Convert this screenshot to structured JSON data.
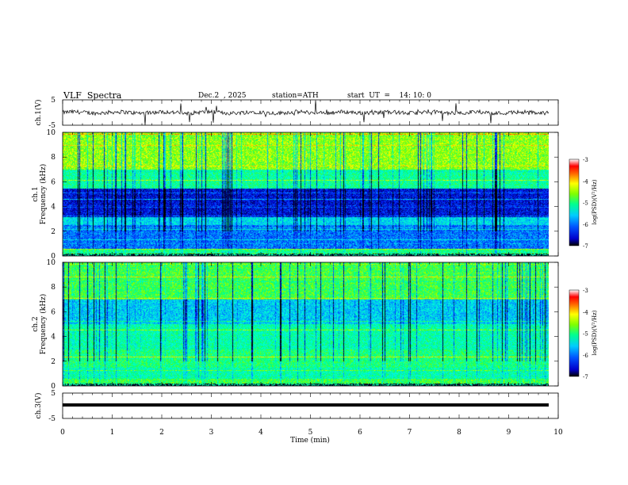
{
  "header": {
    "title": "VLF  Spectra",
    "date": "Dec.2  , 2025",
    "station": "station=ATH",
    "start": "start  UT  =    14: 10: 0"
  },
  "colors": {
    "scale": [
      "#000000",
      "#0000cc",
      "#0055ff",
      "#00aaff",
      "#00ffff",
      "#00ff80",
      "#80ff00",
      "#ffff00",
      "#ff8000",
      "#ff0000",
      "#ffffff"
    ]
  },
  "chart_data": [
    {
      "type": "line",
      "panel": "ch1-waveform",
      "ylabel": "ch.1(V)",
      "ylim": [
        -5,
        5
      ],
      "yticks": [
        "5",
        "-5"
      ],
      "xlim": [
        0,
        10
      ]
    },
    {
      "type": "heatmap",
      "panel": "ch1-spectrogram",
      "ylabel_top": "ch.1",
      "ylabel": "Frequency  (kHz)",
      "ylim": [
        0,
        10
      ],
      "yticks": [
        "0",
        "2",
        "4",
        "6",
        "8",
        "10"
      ],
      "xlim": [
        0,
        10
      ],
      "colorbar": {
        "label": "log(PSD)(V²/Hz)",
        "range": [
          -7,
          -3
        ],
        "ticks": [
          "-3",
          "-4",
          "-5",
          "-6",
          "-7"
        ]
      }
    },
    {
      "type": "heatmap",
      "panel": "ch2-spectrogram",
      "ylabel_top": "ch.2",
      "ylabel": "Frequency  (kHz)",
      "ylim": [
        0,
        10
      ],
      "yticks": [
        "0",
        "2",
        "4",
        "6",
        "8",
        "10"
      ],
      "xlim": [
        0,
        10
      ],
      "colorbar": {
        "label": "log(PSD)(V²/Hz)",
        "range": [
          -7,
          -3
        ],
        "ticks": [
          "-3",
          "-4",
          "-5",
          "-6",
          "-7"
        ]
      }
    },
    {
      "type": "line",
      "panel": "ch3-waveform",
      "ylabel": "ch.3(V)",
      "ylim": [
        -5,
        5
      ],
      "yticks": [
        "5",
        "-5"
      ],
      "xlim": [
        0,
        10
      ],
      "xlabel": "Time  (min)",
      "xticks": [
        "0",
        "1",
        "2",
        "3",
        "4",
        "5",
        "6",
        "7",
        "8",
        "9",
        "10"
      ]
    }
  ]
}
